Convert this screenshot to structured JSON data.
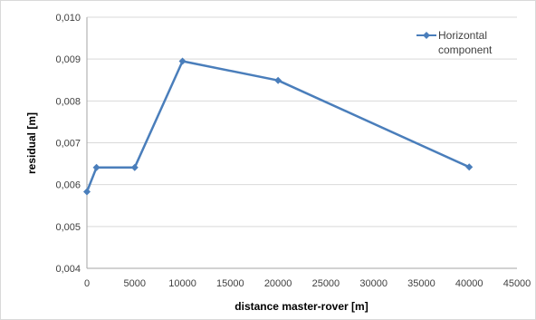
{
  "chart_data": {
    "type": "line",
    "x": [
      0,
      1000,
      5000,
      10000,
      20000,
      40000
    ],
    "series": [
      {
        "name": "Horizontal component",
        "values": [
          0.00583,
          0.00641,
          0.00641,
          0.00895,
          0.00849,
          0.00642
        ],
        "color": "#4a7ebb"
      }
    ],
    "xlabel": "distance master-rover  [m]",
    "ylabel": "residual [m]",
    "xlim": [
      0,
      45000
    ],
    "ylim": [
      0.004,
      0.01
    ],
    "xticks": [
      "0",
      "5000",
      "10000",
      "15000",
      "20000",
      "25000",
      "30000",
      "35000",
      "40000",
      "45000"
    ],
    "yticks": [
      "0,004",
      "0,005",
      "0,006",
      "0,007",
      "0,008",
      "0,009",
      "0,010"
    ],
    "grid": "horizontal",
    "legend_position": "top-right",
    "legend_lines": [
      "Horizontal",
      "component"
    ]
  }
}
